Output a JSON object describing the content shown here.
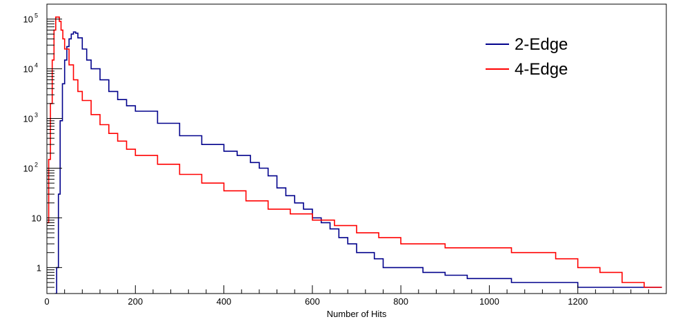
{
  "chart_data": {
    "type": "line",
    "title": "",
    "xlabel": "Number of Hits",
    "ylabel": "",
    "xlim": [
      0,
      1400
    ],
    "ylim": [
      0.3,
      200000
    ],
    "yscale": "log",
    "x_ticks": [
      {
        "value": 0,
        "label": "0"
      },
      {
        "value": 200,
        "label": "200"
      },
      {
        "value": 400,
        "label": "400"
      },
      {
        "value": 600,
        "label": "600"
      },
      {
        "value": 800,
        "label": "800"
      },
      {
        "value": 1000,
        "label": "1000"
      },
      {
        "value": 1200,
        "label": "1200"
      }
    ],
    "y_ticks": [
      {
        "value": 1,
        "base": "1",
        "exp": ""
      },
      {
        "value": 10,
        "base": "10",
        "exp": ""
      },
      {
        "value": 100,
        "base": "10",
        "exp": "2"
      },
      {
        "value": 1000,
        "base": "10",
        "exp": "3"
      },
      {
        "value": 10000,
        "base": "10",
        "exp": "4"
      },
      {
        "value": 100000,
        "base": "10",
        "exp": "5"
      }
    ],
    "grid": false,
    "legend_position": "top-right",
    "series": [
      {
        "name": "2-Edge",
        "color": "#00008b",
        "x": [
          18,
          22,
          26,
          30,
          35,
          40,
          45,
          50,
          55,
          60,
          65,
          70,
          80,
          90,
          100,
          120,
          140,
          160,
          180,
          200,
          250,
          300,
          350,
          400,
          430,
          460,
          480,
          500,
          520,
          540,
          560,
          580,
          600,
          620,
          640,
          660,
          680,
          700,
          720,
          740,
          760,
          780,
          800,
          850,
          900,
          950,
          1000,
          1050,
          1100,
          1150,
          1200,
          1250,
          1300,
          1350,
          1390
        ],
        "y": [
          0.3,
          1,
          30,
          900,
          5000,
          15000,
          28000,
          40000,
          50000,
          55000,
          52000,
          42000,
          25000,
          15000,
          10000,
          6000,
          3500,
          2400,
          1800,
          1400,
          800,
          450,
          300,
          220,
          180,
          130,
          100,
          70,
          40,
          28,
          20,
          15,
          10,
          8,
          6,
          4,
          3,
          2,
          2,
          1.5,
          1,
          1,
          1,
          0.8,
          0.7,
          0.6,
          0.6,
          0.5,
          0.5,
          0.5,
          0.4,
          0.4,
          0.4,
          0.4,
          0.4
        ]
      },
      {
        "name": "4-Edge",
        "color": "#ff0000",
        "x": [
          0,
          4,
          8,
          12,
          16,
          20,
          24,
          28,
          32,
          36,
          40,
          50,
          60,
          70,
          80,
          100,
          120,
          140,
          160,
          180,
          200,
          250,
          300,
          350,
          400,
          450,
          500,
          550,
          600,
          650,
          700,
          750,
          800,
          850,
          900,
          950,
          1000,
          1050,
          1100,
          1150,
          1200,
          1250,
          1300,
          1350,
          1390
        ],
        "y": [
          8,
          150,
          2000,
          15000,
          60000,
          110000,
          110000,
          90000,
          60000,
          40000,
          25000,
          12000,
          6000,
          3500,
          2300,
          1200,
          750,
          500,
          350,
          240,
          180,
          120,
          75,
          50,
          35,
          22,
          15,
          12,
          9,
          7,
          5,
          4,
          3,
          3,
          2.5,
          2.5,
          2.5,
          2,
          2,
          1.5,
          1,
          0.8,
          0.5,
          0.4,
          0.4
        ]
      }
    ]
  }
}
